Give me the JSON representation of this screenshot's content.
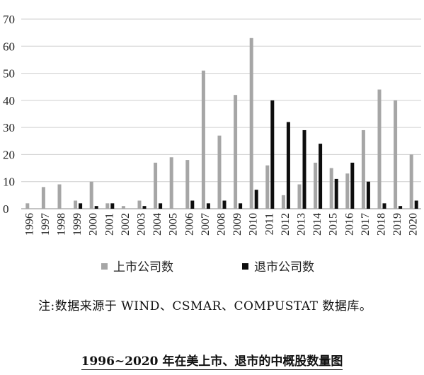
{
  "chart_data": {
    "type": "bar",
    "categories": [
      "1996",
      "1997",
      "1998",
      "1999",
      "2000",
      "2001",
      "2002",
      "2003",
      "2004",
      "2005",
      "2006",
      "2007",
      "2008",
      "2009",
      "2010",
      "2011",
      "2012",
      "2013",
      "2014",
      "2015",
      "2016",
      "2017",
      "2018",
      "2019",
      "2020"
    ],
    "series": [
      {
        "name": "上市公司数",
        "color": "#a6a6a6",
        "values": [
          2,
          8,
          9,
          3,
          10,
          2,
          1,
          3,
          17,
          19,
          18,
          51,
          27,
          42,
          63,
          16,
          5,
          9,
          17,
          15,
          13,
          29,
          44,
          40,
          20
        ]
      },
      {
        "name": "退市公司数",
        "color": "#0d0d0d",
        "values": [
          0,
          0,
          0,
          2,
          1,
          2,
          0,
          1,
          2,
          0,
          3,
          2,
          3,
          2,
          7,
          40,
          32,
          29,
          24,
          11,
          17,
          10,
          2,
          1,
          3
        ]
      }
    ],
    "yticks": [
      0,
      10,
      20,
      30,
      40,
      50,
      60,
      70
    ],
    "ylim": [
      0,
      70
    ],
    "grid": true,
    "legend_position": "bottom"
  },
  "note": "注:数据来源于 WIND、CSMAR、COMPUSTAT 数据库。",
  "caption": "1996~2020 年在美上市、退市的中概股数量图"
}
